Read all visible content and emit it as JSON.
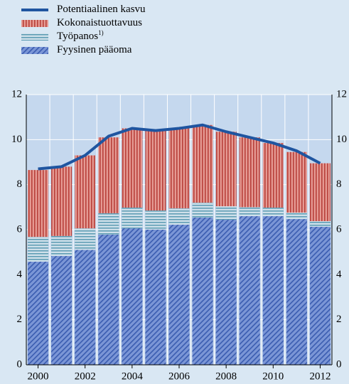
{
  "chart_data": {
    "type": "stacked_bar_line",
    "categories": [
      "2000",
      null,
      "2002",
      null,
      "2004",
      null,
      "2006",
      null,
      "2008",
      null,
      "2010",
      null,
      "2012"
    ],
    "series": [
      {
        "name": "Fyysinen pääoma",
        "color": "#4a6fc0",
        "values": [
          4.58,
          4.83,
          5.1,
          5.78,
          6.06,
          6.0,
          6.22,
          6.54,
          6.44,
          6.6,
          6.6,
          6.47,
          6.13
        ]
      },
      {
        "name": "Työpanos",
        "color": "#4a90a8",
        "values": [
          1.1,
          0.89,
          0.96,
          0.95,
          0.92,
          0.85,
          0.73,
          0.66,
          0.6,
          0.4,
          0.38,
          0.29,
          0.25
        ]
      },
      {
        "name": "Kokonaistuottavuus",
        "color": "#c0504d",
        "values": [
          2.97,
          3.08,
          3.24,
          3.37,
          3.52,
          3.55,
          3.55,
          3.45,
          3.31,
          3.1,
          2.87,
          2.69,
          2.57
        ]
      },
      {
        "name": "Potentiaalinen kasvu",
        "color": "#1f55a0",
        "type": "line",
        "values": [
          8.7,
          8.8,
          9.3,
          10.15,
          10.5,
          10.4,
          10.5,
          10.65,
          10.35,
          10.1,
          9.85,
          9.5,
          8.95
        ]
      }
    ],
    "legend_footnote": "1)",
    "ylim": [
      0,
      12
    ],
    "yticks": [
      0,
      2,
      4,
      6,
      8,
      10,
      12
    ],
    "grid": true
  }
}
